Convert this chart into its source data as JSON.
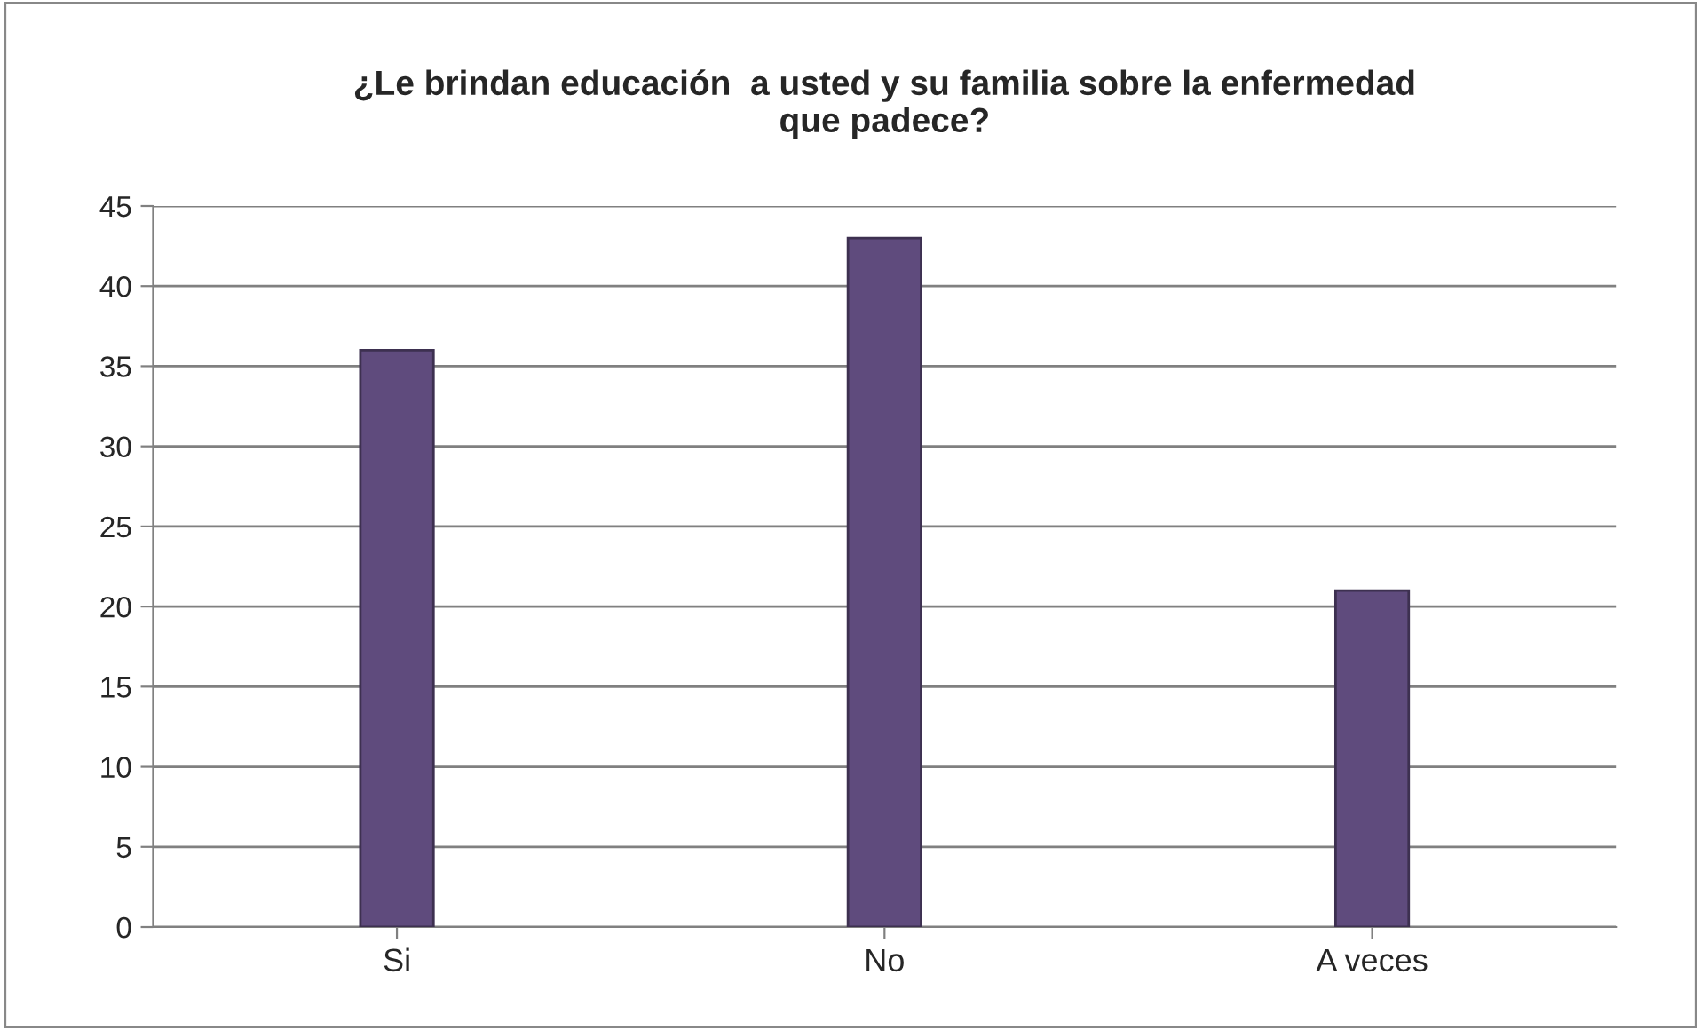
{
  "chart_data": {
    "type": "bar",
    "title": "¿Le brindan educación  a usted y su familia sobre la enfermedad\nque padece?",
    "categories": [
      "Si",
      "No",
      "A veces"
    ],
    "values": [
      36,
      43,
      21
    ],
    "color": "#5f4b7d",
    "ylim": [
      0,
      45
    ],
    "yticks": [
      0,
      5,
      10,
      15,
      20,
      25,
      30,
      35,
      40,
      45
    ],
    "grid": "y",
    "legend": false
  }
}
